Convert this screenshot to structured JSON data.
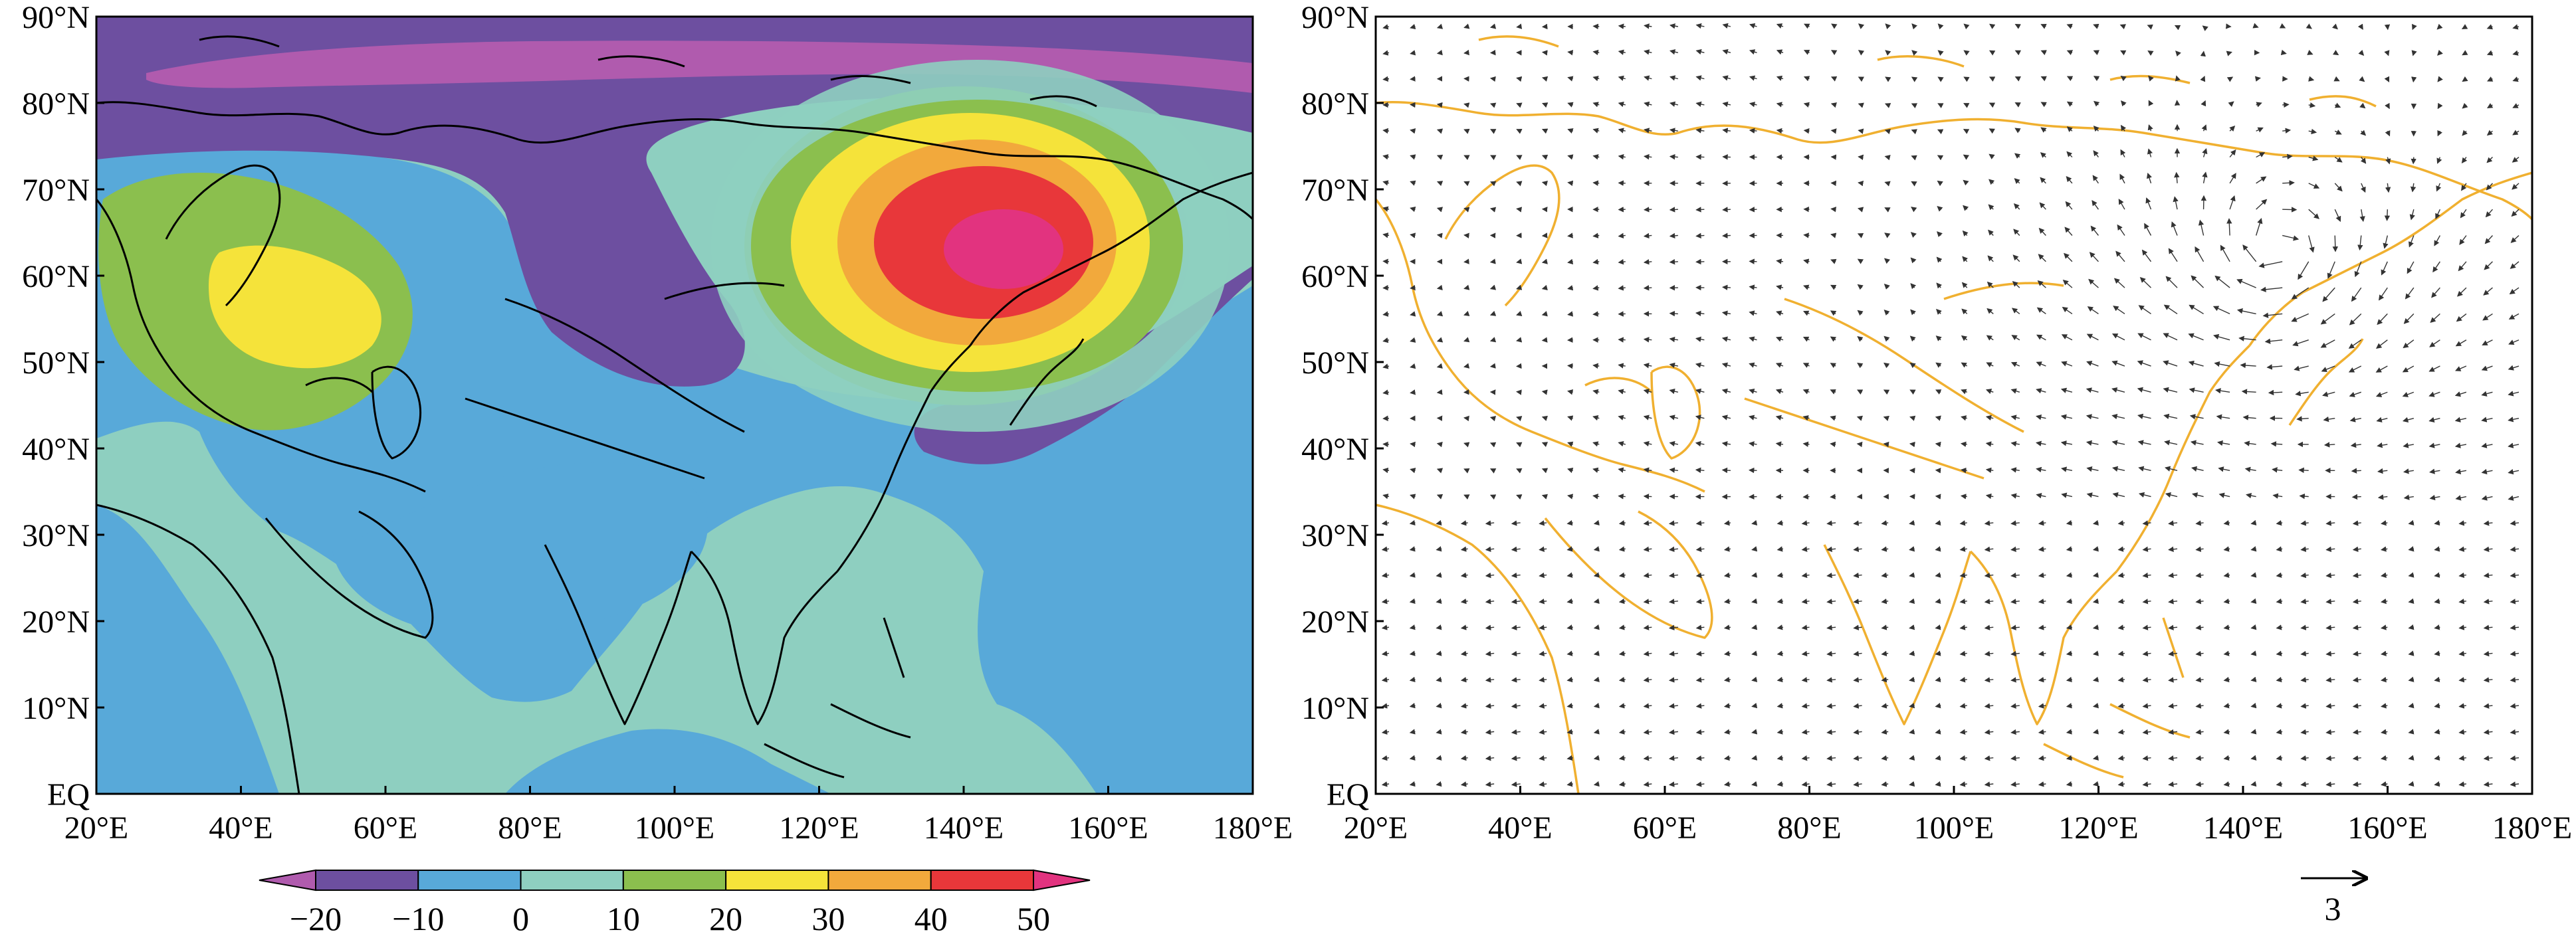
{
  "left_panel": {
    "lat_labels": [
      "90°N",
      "80°N",
      "70°N",
      "60°N",
      "50°N",
      "40°N",
      "30°N",
      "20°N",
      "10°N",
      "EQ"
    ],
    "lon_labels": [
      "20°E",
      "40°E",
      "60°E",
      "80°E",
      "100°E",
      "120°E",
      "140°E",
      "160°E",
      "180°E"
    ]
  },
  "right_panel": {
    "lat_labels": [
      "90°N",
      "80°N",
      "70°N",
      "60°N",
      "50°N",
      "40°N",
      "30°N",
      "20°N",
      "10°N",
      "EQ"
    ],
    "lon_labels": [
      "20°E",
      "40°E",
      "60°E",
      "80°E",
      "100°E",
      "120°E",
      "140°E",
      "160°E",
      "180°E"
    ],
    "reference_vector_label": "3"
  },
  "colorbar": {
    "tick_labels": [
      "−20",
      "−10",
      "0",
      "10",
      "20",
      "30",
      "40",
      "50"
    ],
    "colors": [
      "#b05bae",
      "#6d4fa0",
      "#58a9d9",
      "#8ecfc0",
      "#8bbf4e",
      "#f5e33a",
      "#f2a93c",
      "#e8373a",
      "#e2337f"
    ]
  },
  "colors": {
    "coastline_left": "#000000",
    "coastline_right": "#f0b030",
    "vector": "#333333"
  }
}
